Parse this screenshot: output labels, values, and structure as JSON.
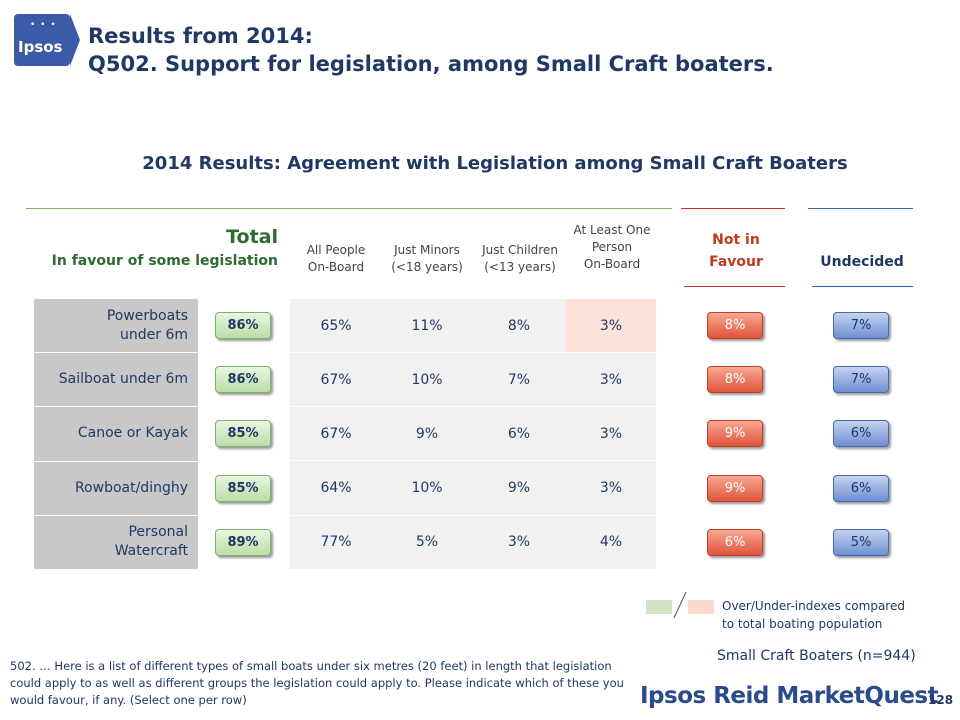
{
  "logo": {
    "text": "Ipsos"
  },
  "slide_title": [
    "Results from 2014:",
    "Q502. Support for legislation, among Small Craft boaters."
  ],
  "chart_title": "2014 Results: Agreement with Legislation among Small Craft Boaters",
  "total": {
    "label": "Total",
    "sub": "In favour of some legislation"
  },
  "columns": {
    "all_people": [
      "All People",
      "On-Board"
    ],
    "just_minors": [
      "Just Minors",
      "(<18 years)"
    ],
    "just_children": [
      "Just Children",
      "(<13 years)"
    ],
    "at_least_one": [
      "At Least One",
      "Person",
      "On-Board"
    ],
    "not_in_favour": [
      "Not in",
      "Favour"
    ],
    "undecided": "Undecided"
  },
  "rows": [
    {
      "label": [
        "Powerboats",
        "under 6m"
      ],
      "total": "86%",
      "all": "65%",
      "minors": "11%",
      "children": "8%",
      "atleast": "3%",
      "not_favour": "8%",
      "undecided": "7%"
    },
    {
      "label": [
        "Sailboat under 6m"
      ],
      "total": "86%",
      "all": "67%",
      "minors": "10%",
      "children": "7%",
      "atleast": "3%",
      "not_favour": "8%",
      "undecided": "7%"
    },
    {
      "label": [
        "Canoe or Kayak"
      ],
      "total": "85%",
      "all": "67%",
      "minors": "9%",
      "children": "6%",
      "atleast": "3%",
      "not_favour": "9%",
      "undecided": "6%"
    },
    {
      "label": [
        "Rowboat/dinghy"
      ],
      "total": "85%",
      "all": "64%",
      "minors": "10%",
      "children": "9%",
      "atleast": "3%",
      "not_favour": "9%",
      "undecided": "6%"
    },
    {
      "label": [
        "Personal",
        "Watercraft"
      ],
      "total": "89%",
      "all": "77%",
      "minors": "5%",
      "children": "3%",
      "atleast": "4%",
      "not_favour": "6%",
      "undecided": "5%"
    }
  ],
  "legend": [
    "Over/Under-indexes compared",
    "to total boating population"
  ],
  "base": "Small Craft Boaters (n=944)",
  "footnote": "502. … Here is a list of different types of small boats under six metres (20 feet) in length that legislation could apply to as well as different groups the legislation could apply to. Please indicate which of these you would favour, if any. (Select one per row)",
  "brand": "Ipsos Reid MarketQuest",
  "page_number": "128",
  "colors": {
    "navy": "#1f3864",
    "green": "#2e6b2e",
    "red": "#c0391b",
    "pink_highlight": "#fde2d9",
    "label_bg": "#c8c8c8"
  }
}
